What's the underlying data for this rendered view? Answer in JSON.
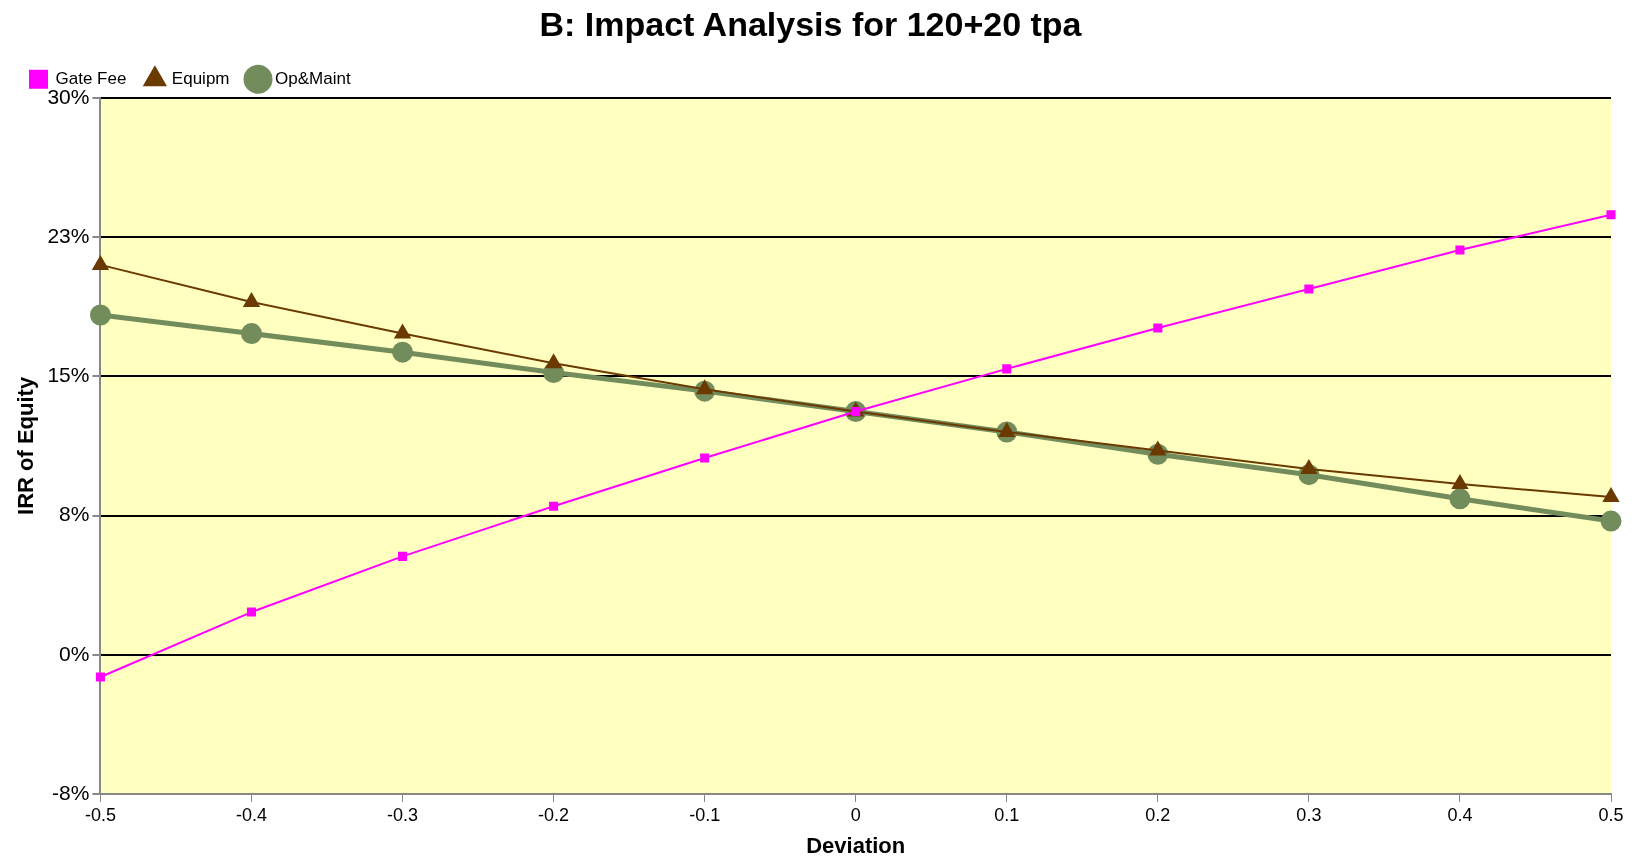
{
  "chart_data": {
    "type": "line",
    "title": "B: Impact Analysis for 120+20 tpa",
    "xlabel": "Deviation",
    "ylabel": "IRR of Equity",
    "x": [
      -0.5,
      -0.4,
      -0.3,
      -0.2,
      -0.1,
      0,
      0.1,
      0.2,
      0.3,
      0.4,
      0.5
    ],
    "series": [
      {
        "name": "Gate Fee",
        "color": "#ff00ff",
        "marker": "square",
        "values": [
          -1.2,
          2.3,
          5.3,
          8.0,
          10.6,
          13.1,
          15.4,
          17.6,
          19.7,
          21.8,
          23.7
        ]
      },
      {
        "name": "Equipm",
        "color": "#6b3a00",
        "marker": "triangle",
        "values": [
          21.0,
          19.0,
          17.3,
          15.7,
          14.3,
          13.1,
          12.0,
          11.0,
          10.0,
          9.2,
          8.5
        ]
      },
      {
        "name": "Op&Maint",
        "color": "#738c5c",
        "marker": "circle",
        "values": [
          18.3,
          17.3,
          16.3,
          15.2,
          14.2,
          13.1,
          12.0,
          10.8,
          9.7,
          8.4,
          7.2
        ]
      }
    ],
    "xlim": [
      -0.5,
      0.5
    ],
    "xticks": [
      -0.5,
      -0.4,
      -0.3,
      -0.2,
      -0.1,
      0,
      0.1,
      0.2,
      0.3,
      0.4,
      0.5
    ],
    "ylim": [
      -7.5,
      30
    ],
    "yticks": [
      {
        "value": -7.5,
        "label": "-8%"
      },
      {
        "value": 0,
        "label": "0%"
      },
      {
        "value": 7.5,
        "label": "8%"
      },
      {
        "value": 15,
        "label": "15%"
      },
      {
        "value": 22.5,
        "label": "23%"
      },
      {
        "value": 30,
        "label": "30%"
      }
    ],
    "grid": "y",
    "legend": "top left",
    "line_style": "solid"
  }
}
